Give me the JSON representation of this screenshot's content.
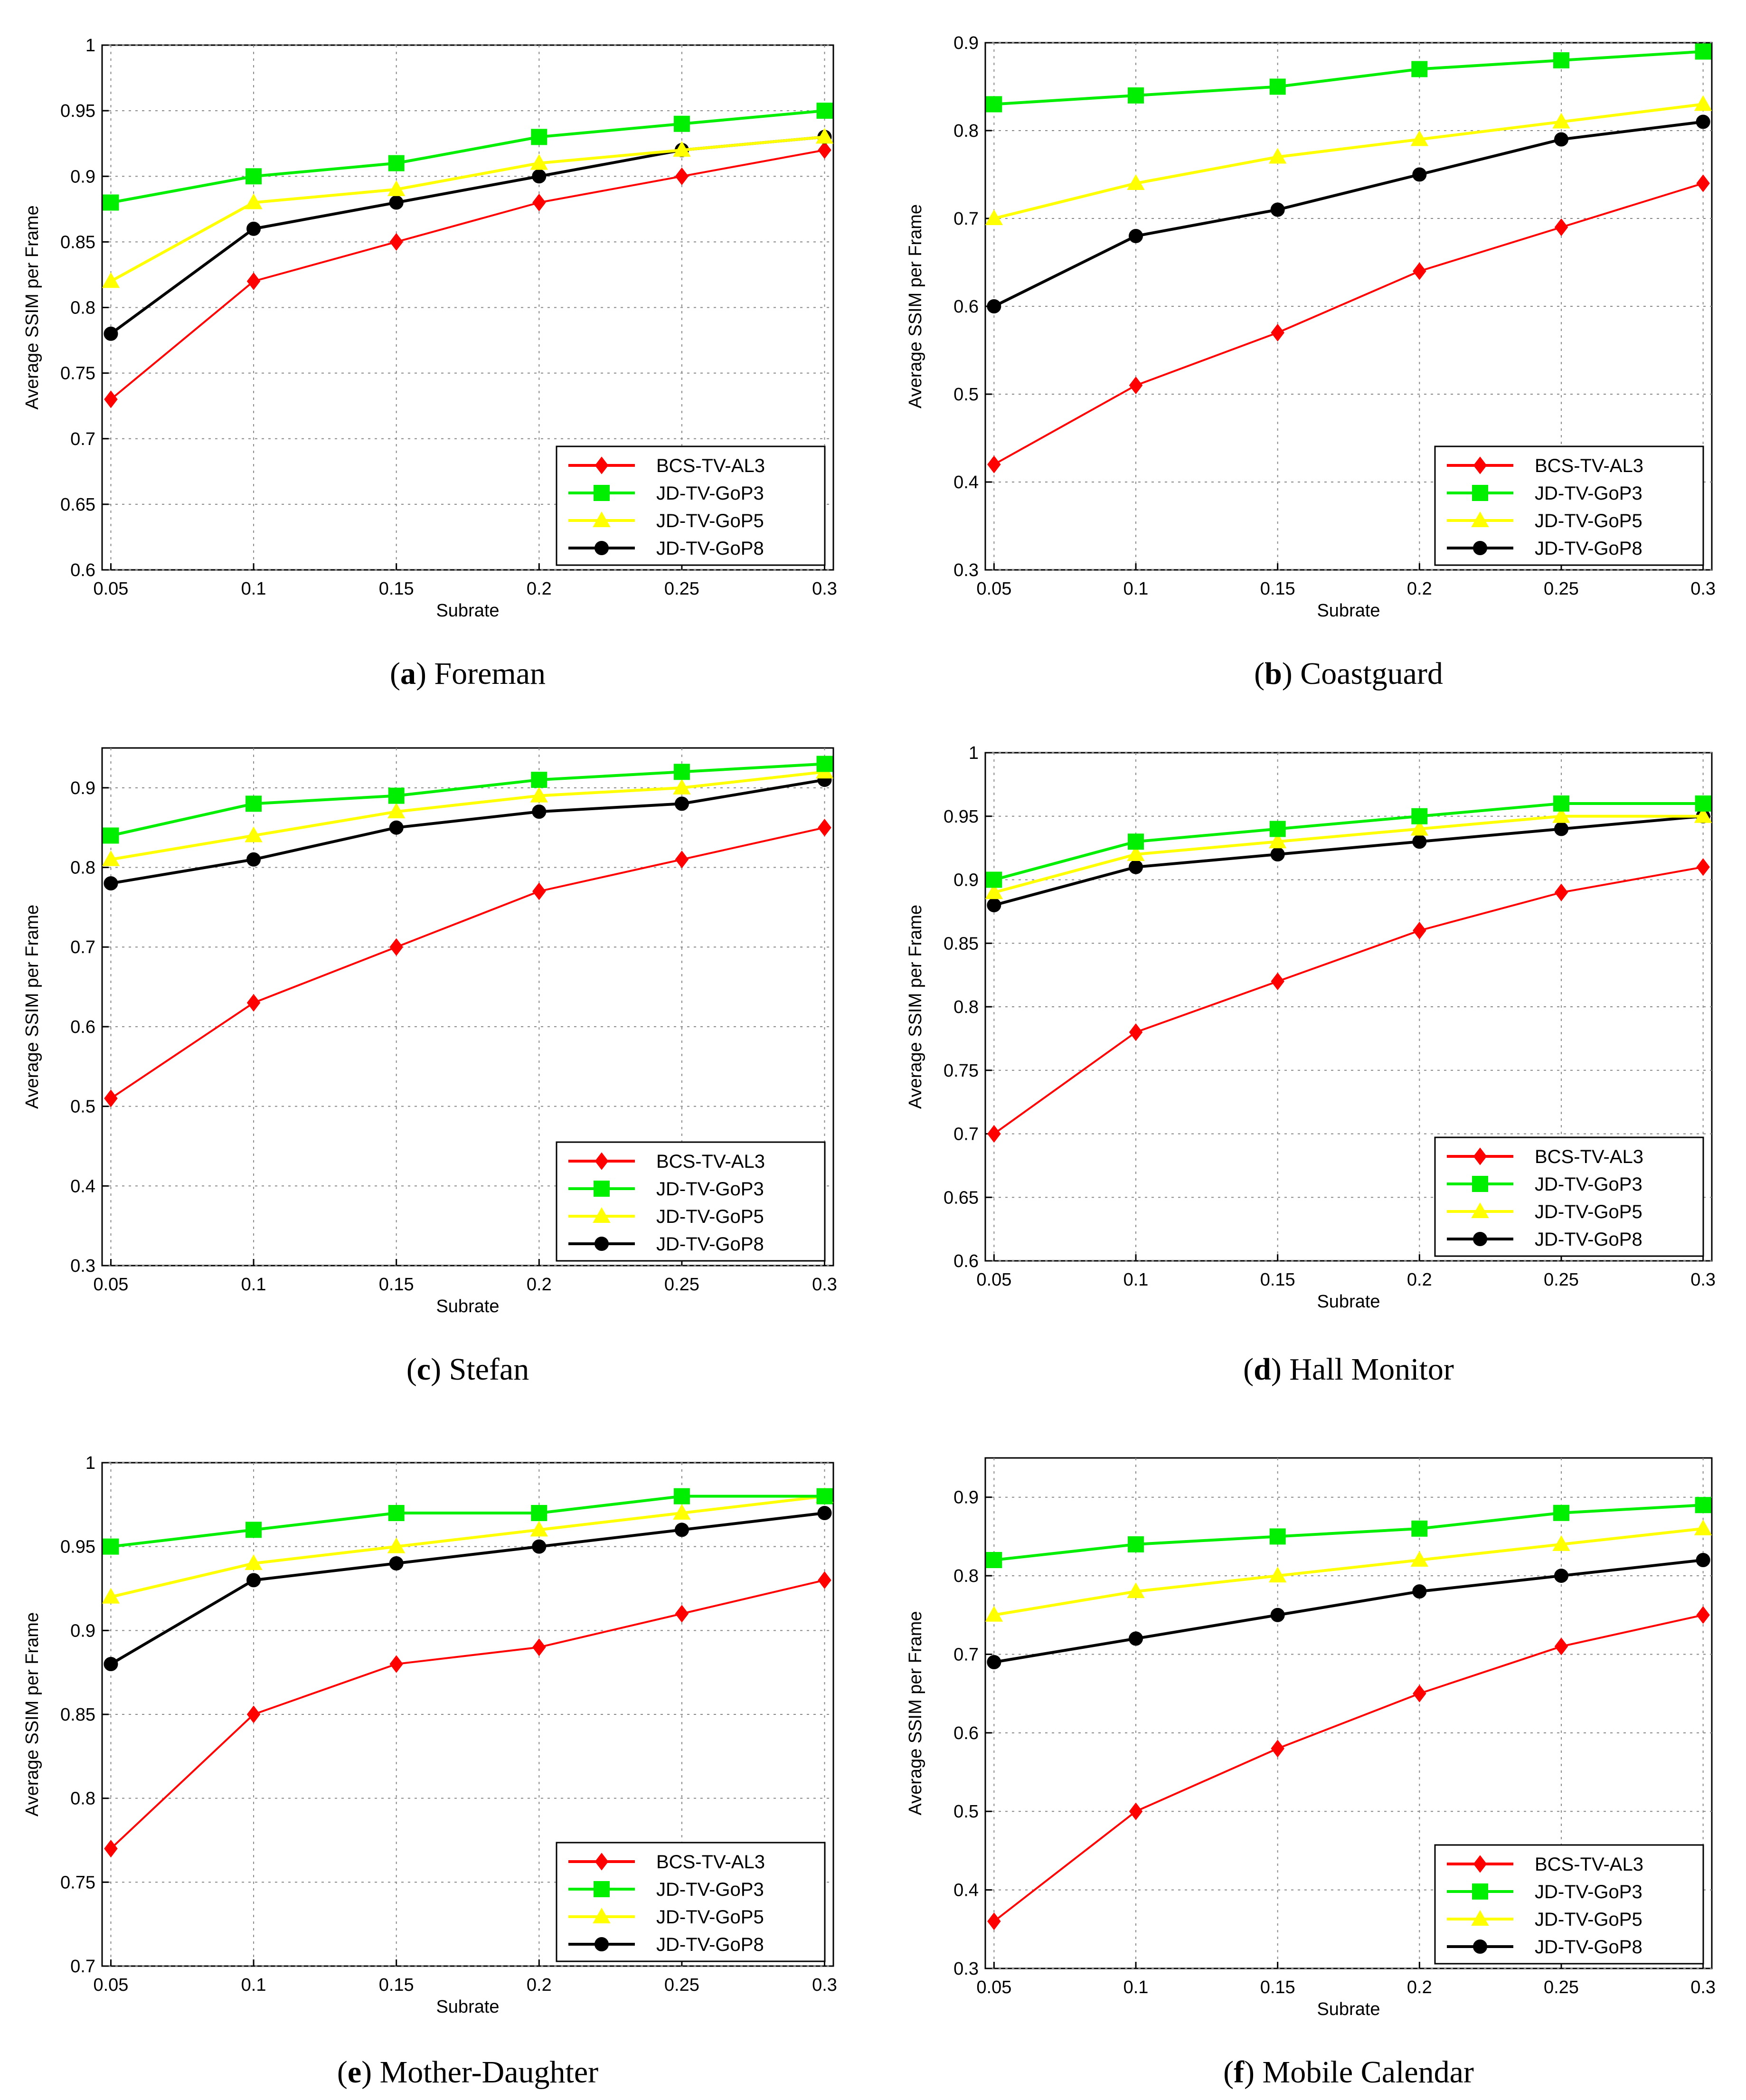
{
  "colors": {
    "BCS-TV-AL3": "#ff0000",
    "JD-TV-GoP3": "#00ee00",
    "JD-TV-GoP5": "#ffff00",
    "JD-TV-GoP8": "#000000",
    "grid": "#888888",
    "axis": "#000000"
  },
  "chart_data": [
    {
      "type": "line",
      "panel_letter": "a",
      "panel_name": "Foreman",
      "xlabel": "Subrate",
      "ylabel": "Average SSIM per Frame",
      "x": [
        0.05,
        0.1,
        0.15,
        0.2,
        0.25,
        0.3
      ],
      "x_tick_labels": [
        "0.05",
        "0.1",
        "0.15",
        "0.2",
        "0.25",
        "0.3"
      ],
      "ylim": [
        0.6,
        1.0
      ],
      "y_ticks": [
        0.6,
        0.65,
        0.7,
        0.75,
        0.8,
        0.85,
        0.9,
        0.95,
        1.0
      ],
      "y_tick_labels": [
        "0.6",
        "0.65",
        "0.7",
        "0.75",
        "0.8",
        "0.85",
        "0.9",
        "0.95",
        "1"
      ],
      "grid": true,
      "legend_position": "bottom-right",
      "series": [
        {
          "name": "BCS-TV-AL3",
          "marker": "diamond",
          "values": [
            0.73,
            0.82,
            0.85,
            0.88,
            0.9,
            0.92
          ]
        },
        {
          "name": "JD-TV-GoP3",
          "marker": "square",
          "values": [
            0.88,
            0.9,
            0.91,
            0.93,
            0.94,
            0.95
          ]
        },
        {
          "name": "JD-TV-GoP5",
          "marker": "triangle",
          "values": [
            0.82,
            0.88,
            0.89,
            0.91,
            0.92,
            0.93
          ]
        },
        {
          "name": "JD-TV-GoP8",
          "marker": "circle",
          "values": [
            0.78,
            0.86,
            0.88,
            0.9,
            0.92,
            0.93
          ]
        }
      ]
    },
    {
      "type": "line",
      "panel_letter": "b",
      "panel_name": "Coastguard",
      "xlabel": "Subrate",
      "ylabel": "Average SSIM per Frame",
      "x": [
        0.05,
        0.1,
        0.15,
        0.2,
        0.25,
        0.3
      ],
      "x_tick_labels": [
        "0.05",
        "0.1",
        "0.15",
        "0.2",
        "0.25",
        "0.3"
      ],
      "ylim": [
        0.3,
        0.9
      ],
      "y_ticks": [
        0.3,
        0.4,
        0.5,
        0.6,
        0.7,
        0.8,
        0.9
      ],
      "y_tick_labels": [
        "0.3",
        "0.4",
        "0.5",
        "0.6",
        "0.7",
        "0.8",
        "0.9"
      ],
      "grid": true,
      "legend_position": "bottom-right",
      "series": [
        {
          "name": "BCS-TV-AL3",
          "marker": "diamond",
          "values": [
            0.42,
            0.51,
            0.57,
            0.64,
            0.69,
            0.74
          ]
        },
        {
          "name": "JD-TV-GoP3",
          "marker": "square",
          "values": [
            0.83,
            0.84,
            0.85,
            0.87,
            0.88,
            0.89
          ]
        },
        {
          "name": "JD-TV-GoP5",
          "marker": "triangle",
          "values": [
            0.7,
            0.74,
            0.77,
            0.79,
            0.81,
            0.83
          ]
        },
        {
          "name": "JD-TV-GoP8",
          "marker": "circle",
          "values": [
            0.6,
            0.68,
            0.71,
            0.75,
            0.79,
            0.81
          ]
        }
      ]
    },
    {
      "type": "line",
      "panel_letter": "c",
      "panel_name": "Stefan",
      "xlabel": "Subrate",
      "ylabel": "Average SSIM per Frame",
      "x": [
        0.05,
        0.1,
        0.15,
        0.2,
        0.25,
        0.3
      ],
      "x_tick_labels": [
        "0.05",
        "0.1",
        "0.15",
        "0.2",
        "0.25",
        "0.3"
      ],
      "ylim": [
        0.3,
        0.95
      ],
      "y_ticks": [
        0.3,
        0.4,
        0.5,
        0.6,
        0.7,
        0.8,
        0.9
      ],
      "y_tick_labels": [
        "0.3",
        "0.4",
        "0.5",
        "0.6",
        "0.7",
        "0.8",
        "0.9"
      ],
      "grid": true,
      "legend_position": "bottom-right",
      "series": [
        {
          "name": "BCS-TV-AL3",
          "marker": "diamond",
          "values": [
            0.51,
            0.63,
            0.7,
            0.77,
            0.81,
            0.85
          ]
        },
        {
          "name": "JD-TV-GoP3",
          "marker": "square",
          "values": [
            0.84,
            0.88,
            0.89,
            0.91,
            0.92,
            0.93
          ]
        },
        {
          "name": "JD-TV-GoP5",
          "marker": "triangle",
          "values": [
            0.81,
            0.84,
            0.87,
            0.89,
            0.9,
            0.92
          ]
        },
        {
          "name": "JD-TV-GoP8",
          "marker": "circle",
          "values": [
            0.78,
            0.81,
            0.85,
            0.87,
            0.88,
            0.91
          ]
        }
      ]
    },
    {
      "type": "line",
      "panel_letter": "d",
      "panel_name": "Hall Monitor",
      "xlabel": "Subrate",
      "ylabel": "Average SSIM per Frame",
      "x": [
        0.05,
        0.1,
        0.15,
        0.2,
        0.25,
        0.3
      ],
      "x_tick_labels": [
        "0.05",
        "0.1",
        "0.15",
        "0.2",
        "0.25",
        "0.3"
      ],
      "ylim": [
        0.6,
        1.0
      ],
      "y_ticks": [
        0.6,
        0.65,
        0.7,
        0.75,
        0.8,
        0.85,
        0.9,
        0.95,
        1.0
      ],
      "y_tick_labels": [
        "0.6",
        "0.65",
        "0.7",
        "0.75",
        "0.8",
        "0.85",
        "0.9",
        "0.95",
        "1"
      ],
      "grid": true,
      "legend_position": "bottom-right",
      "series": [
        {
          "name": "BCS-TV-AL3",
          "marker": "diamond",
          "values": [
            0.7,
            0.78,
            0.82,
            0.86,
            0.89,
            0.91
          ]
        },
        {
          "name": "JD-TV-GoP3",
          "marker": "square",
          "values": [
            0.9,
            0.93,
            0.94,
            0.95,
            0.96,
            0.96
          ]
        },
        {
          "name": "JD-TV-GoP5",
          "marker": "triangle",
          "values": [
            0.89,
            0.92,
            0.93,
            0.94,
            0.95,
            0.95
          ]
        },
        {
          "name": "JD-TV-GoP8",
          "marker": "circle",
          "values": [
            0.88,
            0.91,
            0.92,
            0.93,
            0.94,
            0.95
          ]
        }
      ]
    },
    {
      "type": "line",
      "panel_letter": "e",
      "panel_name": "Mother-Daughter",
      "xlabel": "Subrate",
      "ylabel": "Average SSIM per Frame",
      "x": [
        0.05,
        0.1,
        0.15,
        0.2,
        0.25,
        0.3
      ],
      "x_tick_labels": [
        "0.05",
        "0.1",
        "0.15",
        "0.2",
        "0.25",
        "0.3"
      ],
      "ylim": [
        0.7,
        1.0
      ],
      "y_ticks": [
        0.7,
        0.75,
        0.8,
        0.85,
        0.9,
        0.95,
        1.0
      ],
      "y_tick_labels": [
        "0.7",
        "0.75",
        "0.8",
        "0.85",
        "0.9",
        "0.95",
        "1"
      ],
      "grid": true,
      "legend_position": "bottom-right",
      "series": [
        {
          "name": "BCS-TV-AL3",
          "marker": "diamond",
          "values": [
            0.77,
            0.85,
            0.88,
            0.89,
            0.91,
            0.93
          ]
        },
        {
          "name": "JD-TV-GoP3",
          "marker": "square",
          "values": [
            0.95,
            0.96,
            0.97,
            0.97,
            0.98,
            0.98
          ]
        },
        {
          "name": "JD-TV-GoP5",
          "marker": "triangle",
          "values": [
            0.92,
            0.94,
            0.95,
            0.96,
            0.97,
            0.98
          ]
        },
        {
          "name": "JD-TV-GoP8",
          "marker": "circle",
          "values": [
            0.88,
            0.93,
            0.94,
            0.95,
            0.96,
            0.97
          ]
        }
      ]
    },
    {
      "type": "line",
      "panel_letter": "f",
      "panel_name": "Mobile Calendar",
      "xlabel": "Subrate",
      "ylabel": "Average SSIM per Frame",
      "x": [
        0.05,
        0.1,
        0.15,
        0.2,
        0.25,
        0.3
      ],
      "x_tick_labels": [
        "0.05",
        "0.1",
        "0.15",
        "0.2",
        "0.25",
        "0.3"
      ],
      "ylim": [
        0.3,
        0.95
      ],
      "y_ticks": [
        0.3,
        0.4,
        0.5,
        0.6,
        0.7,
        0.8,
        0.9
      ],
      "y_tick_labels": [
        "0.3",
        "0.4",
        "0.5",
        "0.6",
        "0.7",
        "0.8",
        "0.9"
      ],
      "grid": true,
      "legend_position": "bottom-right",
      "series": [
        {
          "name": "BCS-TV-AL3",
          "marker": "diamond",
          "values": [
            0.36,
            0.5,
            0.58,
            0.65,
            0.71,
            0.75
          ]
        },
        {
          "name": "JD-TV-GoP3",
          "marker": "square",
          "values": [
            0.82,
            0.84,
            0.85,
            0.86,
            0.88,
            0.89
          ]
        },
        {
          "name": "JD-TV-GoP5",
          "marker": "triangle",
          "values": [
            0.75,
            0.78,
            0.8,
            0.82,
            0.84,
            0.86
          ]
        },
        {
          "name": "JD-TV-GoP8",
          "marker": "circle",
          "values": [
            0.69,
            0.72,
            0.75,
            0.78,
            0.8,
            0.82
          ]
        }
      ]
    }
  ]
}
